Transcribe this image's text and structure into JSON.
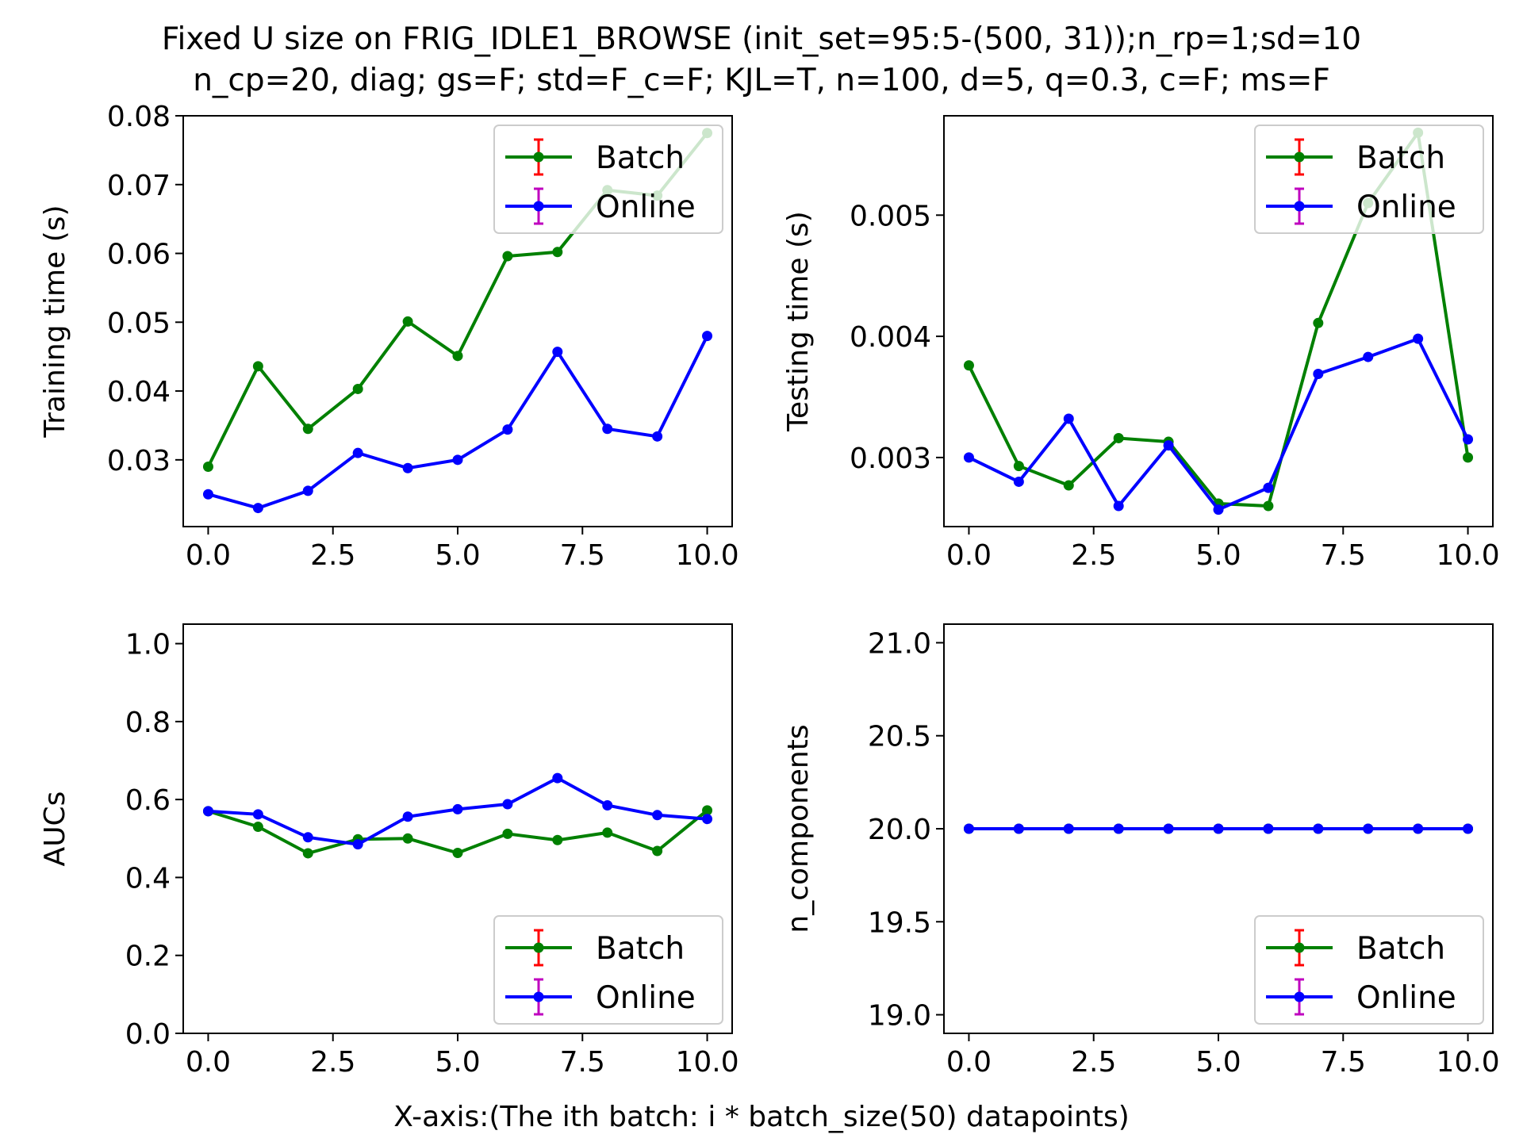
{
  "figure": {
    "title_line1": "Fixed U size on FRIG_IDLE1_BROWSE (init_set=95:5-(500, 31));n_rp=1;sd=10",
    "title_line2": "n_cp=20, diag; gs=F; std=F_c=F; KJL=T, n=100, d=5, q=0.3, c=F; ms=F",
    "xlabel": "X-axis:(The ith batch: i * batch_size(50) datapoints)"
  },
  "colors": {
    "batch": "#008000",
    "online": "#0000ff",
    "batch_err": "#ff0000",
    "online_err": "#bf00bf"
  },
  "chart_data": [
    {
      "type": "line",
      "ylabel": "Training time (s)",
      "x": [
        0,
        1,
        2,
        3,
        4,
        5,
        6,
        7,
        8,
        9,
        10
      ],
      "xlim": [
        -0.5,
        10.5
      ],
      "ylim": [
        0.0203,
        0.08
      ],
      "xticks": [
        0,
        2.5,
        5,
        7.5,
        10
      ],
      "xtick_labels": [
        "0.0",
        "2.5",
        "5.0",
        "7.5",
        "10.0"
      ],
      "yticks": [
        0.03,
        0.04,
        0.05,
        0.06,
        0.07,
        0.08
      ],
      "ytick_labels": [
        "0.03",
        "0.04",
        "0.05",
        "0.06",
        "0.07",
        "0.08"
      ],
      "legend": "top-right",
      "series": [
        {
          "name": "Batch",
          "values": [
            0.029,
            0.0436,
            0.0345,
            0.0403,
            0.0501,
            0.0451,
            0.0596,
            0.0602,
            0.0692,
            0.0684,
            0.0775
          ]
        },
        {
          "name": "Online",
          "values": [
            0.025,
            0.023,
            0.0255,
            0.031,
            0.0288,
            0.03,
            0.0344,
            0.0457,
            0.0345,
            0.0334,
            0.048
          ]
        }
      ]
    },
    {
      "type": "line",
      "ylabel": "Testing time (s)",
      "x": [
        0,
        1,
        2,
        3,
        4,
        5,
        6,
        7,
        8,
        9,
        10
      ],
      "xlim": [
        -0.5,
        10.5
      ],
      "ylim": [
        0.00243,
        0.00582
      ],
      "xticks": [
        0,
        2.5,
        5,
        7.5,
        10
      ],
      "xtick_labels": [
        "0.0",
        "2.5",
        "5.0",
        "7.5",
        "10.0"
      ],
      "yticks": [
        0.003,
        0.004,
        0.005
      ],
      "ytick_labels": [
        "0.003",
        "0.004",
        "0.005"
      ],
      "legend": "top-right",
      "series": [
        {
          "name": "Batch",
          "values": [
            0.00376,
            0.00293,
            0.00277,
            0.00316,
            0.00313,
            0.00262,
            0.0026,
            0.00411,
            0.0051,
            0.00568,
            0.003
          ]
        },
        {
          "name": "Online",
          "values": [
            0.003,
            0.0028,
            0.00332,
            0.0026,
            0.0031,
            0.00257,
            0.00275,
            0.00369,
            0.00383,
            0.00398,
            0.00315
          ]
        }
      ]
    },
    {
      "type": "line",
      "ylabel": "AUCs",
      "x": [
        0,
        1,
        2,
        3,
        4,
        5,
        6,
        7,
        8,
        9,
        10
      ],
      "xlim": [
        -0.5,
        10.5
      ],
      "ylim": [
        0.0,
        1.05
      ],
      "xticks": [
        0,
        2.5,
        5,
        7.5,
        10
      ],
      "xtick_labels": [
        "0.0",
        "2.5",
        "5.0",
        "7.5",
        "10.0"
      ],
      "yticks": [
        0.0,
        0.2,
        0.4,
        0.6,
        0.8,
        1.0
      ],
      "ytick_labels": [
        "0.0",
        "0.2",
        "0.4",
        "0.6",
        "0.8",
        "1.0"
      ],
      "legend": "bottom-right",
      "series": [
        {
          "name": "Batch",
          "values": [
            0.57,
            0.53,
            0.462,
            0.498,
            0.5,
            0.463,
            0.512,
            0.496,
            0.515,
            0.468,
            0.572
          ]
        },
        {
          "name": "Online",
          "values": [
            0.57,
            0.562,
            0.503,
            0.485,
            0.556,
            0.575,
            0.588,
            0.655,
            0.585,
            0.56,
            0.55
          ]
        }
      ]
    },
    {
      "type": "line",
      "ylabel": "n_components",
      "x": [
        0,
        1,
        2,
        3,
        4,
        5,
        6,
        7,
        8,
        9,
        10
      ],
      "xlim": [
        -0.5,
        10.5
      ],
      "ylim": [
        18.9,
        21.1
      ],
      "xticks": [
        0,
        2.5,
        5,
        7.5,
        10
      ],
      "xtick_labels": [
        "0.0",
        "2.5",
        "5.0",
        "7.5",
        "10.0"
      ],
      "yticks": [
        19.0,
        19.5,
        20.0,
        20.5,
        21.0
      ],
      "ytick_labels": [
        "19.0",
        "19.5",
        "20.0",
        "20.5",
        "21.0"
      ],
      "legend": "bottom-right",
      "series": [
        {
          "name": "Batch",
          "values": [
            20,
            20,
            20,
            20,
            20,
            20,
            20,
            20,
            20,
            20,
            20
          ]
        },
        {
          "name": "Online",
          "values": [
            20,
            20,
            20,
            20,
            20,
            20,
            20,
            20,
            20,
            20,
            20
          ]
        }
      ]
    }
  ]
}
